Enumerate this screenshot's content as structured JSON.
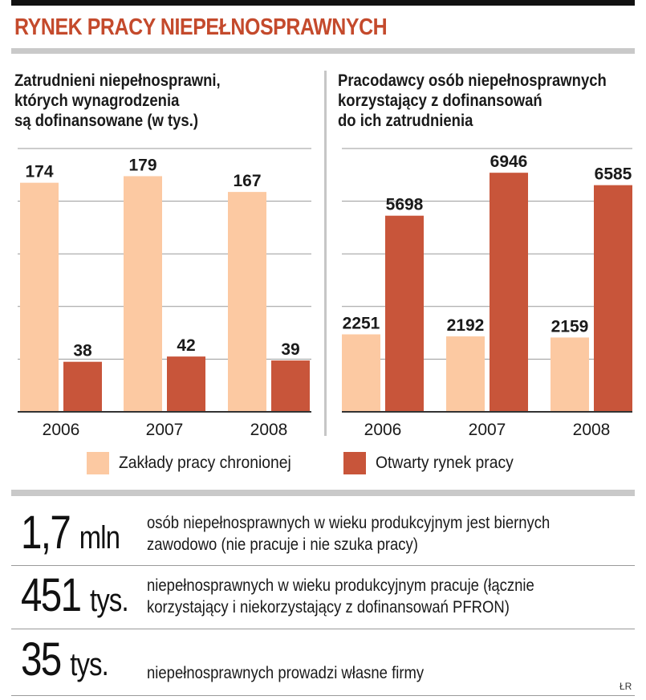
{
  "title": "RYNEK PRACY NIEPEŁNOSPRAWNYCH",
  "colors": {
    "sheltered": "#fcc9a2",
    "open": "#c8553a",
    "title": "#c44a2c",
    "grid": "#9a9a9a"
  },
  "chart_data": [
    {
      "type": "bar",
      "title_lines": [
        "Zatrudnieni niepełnosprawni,",
        "których wynagrodzenia",
        "są dofinansowane (w tys.)"
      ],
      "categories": [
        "2006",
        "2007",
        "2008"
      ],
      "series": [
        {
          "name": "Zakłady pracy chronionej",
          "values": [
            174,
            179,
            167
          ]
        },
        {
          "name": "Otwarty rynek pracy",
          "values": [
            38,
            42,
            39
          ]
        }
      ],
      "ylim": [
        0,
        200
      ],
      "grid": true
    },
    {
      "type": "bar",
      "title_lines": [
        "Pracodawcy osób niepełnosprawnych",
        "korzystający z dofinansowań",
        "do ich zatrudnienia"
      ],
      "categories": [
        "2006",
        "2007",
        "2008"
      ],
      "series": [
        {
          "name": "Zakłady pracy chronionej",
          "values": [
            2251,
            2192,
            2159
          ]
        },
        {
          "name": "Otwarty rynek pracy",
          "values": [
            5698,
            6946,
            6585
          ]
        }
      ],
      "ylim": [
        0,
        7650
      ],
      "grid": true
    }
  ],
  "legend": {
    "sheltered_label": "Zakłady pracy chronionej",
    "open_label": "Otwarty rynek pracy"
  },
  "stats": [
    {
      "number": "1,7",
      "unit": "mln",
      "lines": [
        "osób niepełnosprawnych w wieku produkcyjnym jest biernych",
        "zawodowo (nie pracuje i nie szuka pracy)"
      ]
    },
    {
      "number": "451",
      "unit": "tys.",
      "lines": [
        "niepełnosprawnych w wieku produkcyjnym pracuje (łącznie",
        "korzystający i niekorzystający z dofinansowań PFRON)"
      ]
    },
    {
      "number": "35",
      "unit": "tys.",
      "lines": [
        "niepełnosprawnych prowadzi własne firmy"
      ]
    }
  ],
  "credit": "ŁR"
}
